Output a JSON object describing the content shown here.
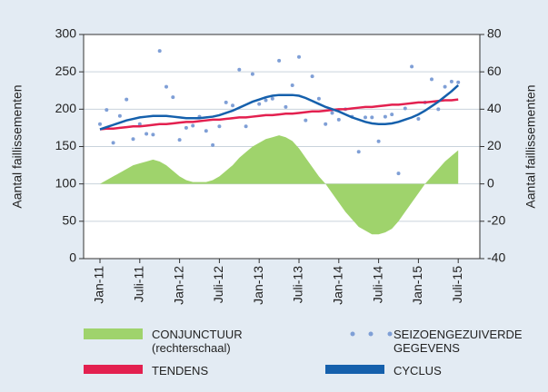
{
  "chart_data": {
    "type": "combo",
    "y_label": "Aantal faillissementen",
    "y2_label": "Aantal faillissementen",
    "categories": [
      "Jan-11",
      null,
      null,
      null,
      null,
      null,
      "Juli-11",
      null,
      null,
      null,
      null,
      null,
      "Jan-12",
      null,
      null,
      null,
      null,
      null,
      "Juli-12",
      null,
      null,
      null,
      null,
      null,
      "Jan-13",
      null,
      null,
      null,
      null,
      null,
      "Juli-13",
      null,
      null,
      null,
      null,
      null,
      "Jan-14",
      null,
      null,
      null,
      null,
      null,
      "Juli-14",
      null,
      null,
      null,
      null,
      null,
      "Jan-15",
      null,
      null,
      null,
      null,
      null,
      "Juli-15"
    ],
    "ylim": [
      0,
      300
    ],
    "yticks": [
      0,
      50,
      100,
      150,
      200,
      250,
      300
    ],
    "y2lim": [
      -40,
      80
    ],
    "y2ticks": [
      -40,
      -20,
      0,
      20,
      40,
      60,
      80
    ],
    "grid": true,
    "series": [
      {
        "name": "CONJUNCTUUR (rechterschaal)",
        "type": "area",
        "axis": "y2",
        "color": "#9fd36c",
        "values": [
          0,
          2,
          4,
          6,
          8,
          10,
          11,
          12,
          13,
          12,
          10,
          7,
          4,
          2,
          1,
          1,
          1,
          2,
          4,
          7,
          10,
          14,
          17,
          20,
          22,
          24,
          25,
          26,
          25,
          23,
          19,
          14,
          9,
          4,
          0,
          -5,
          -10,
          -15,
          -19,
          -23,
          -25,
          -27,
          -27,
          -26,
          -24,
          -20,
          -15,
          -10,
          -5,
          0,
          4,
          8,
          12,
          15,
          18
        ]
      },
      {
        "name": "SEIZOENGEZUIVERDE GEGEVENS",
        "type": "scatter",
        "color": "#7f9fd6",
        "values": [
          180,
          199,
          155,
          191,
          213,
          160,
          180,
          167,
          166,
          278,
          230,
          216,
          159,
          175,
          178,
          190,
          171,
          152,
          177,
          209,
          205,
          253,
          177,
          247,
          207,
          212,
          214,
          265,
          203,
          232,
          270,
          185,
          244,
          214,
          180,
          195,
          186,
          200,
          190,
          143,
          189,
          189,
          157,
          190,
          193,
          114,
          201,
          257,
          187,
          209,
          240,
          200,
          230,
          237,
          236
        ]
      },
      {
        "name": "TENDENS",
        "type": "line",
        "color": "#e3204f",
        "values": [
          173,
          174,
          174,
          175,
          176,
          177,
          177,
          178,
          179,
          180,
          180,
          181,
          182,
          183,
          183,
          184,
          185,
          186,
          186,
          187,
          188,
          189,
          189,
          190,
          191,
          192,
          192,
          193,
          194,
          194,
          195,
          196,
          197,
          197,
          198,
          199,
          200,
          200,
          201,
          202,
          203,
          203,
          204,
          205,
          206,
          206,
          207,
          208,
          209,
          209,
          210,
          211,
          212,
          212,
          213
        ]
      },
      {
        "name": "CYCLUS",
        "type": "line",
        "color": "#1560ac",
        "values": [
          173,
          176,
          179,
          182,
          185,
          187,
          189,
          190,
          191,
          191,
          191,
          190,
          189,
          188,
          188,
          188,
          189,
          190,
          192,
          195,
          198,
          202,
          206,
          210,
          213,
          216,
          218,
          219,
          219,
          219,
          218,
          215,
          211,
          207,
          203,
          200,
          197,
          193,
          189,
          186,
          183,
          181,
          180,
          180,
          181,
          183,
          186,
          189,
          193,
          198,
          204,
          210,
          217,
          224,
          232
        ]
      }
    ]
  }
}
